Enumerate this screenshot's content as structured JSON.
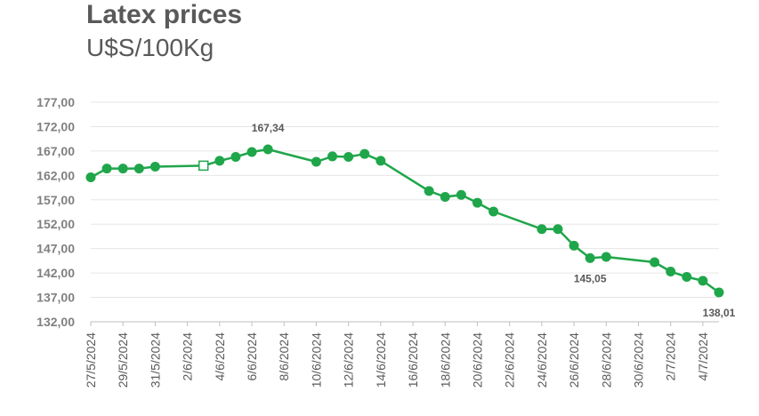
{
  "chart_data": {
    "type": "line",
    "title": "Latex prices",
    "subtitle": "U$S/100Kg",
    "xlabel": "",
    "ylabel": "",
    "ylim": [
      132,
      177
    ],
    "yticks": [
      "132,00",
      "137,00",
      "142,00",
      "147,00",
      "152,00",
      "157,00",
      "162,00",
      "167,00",
      "172,00",
      "177,00"
    ],
    "xlim": [
      "2024-05-27",
      "2024-07-05"
    ],
    "xticks": [
      "27/5/2024",
      "29/5/2024",
      "31/5/2024",
      "2/6/2024",
      "4/6/2024",
      "6/6/2024",
      "8/6/2024",
      "10/6/2024",
      "12/6/2024",
      "14/6/2024",
      "16/6/2024",
      "18/6/2024",
      "20/6/2024",
      "22/6/2024",
      "24/6/2024",
      "26/6/2024",
      "28/6/2024",
      "30/6/2024",
      "2/7/2024",
      "4/7/2024"
    ],
    "grid": true,
    "line_color": "#1fa64a",
    "series": [
      {
        "points": [
          {
            "x": "2024-05-27",
            "y": 161.6
          },
          {
            "x": "2024-05-28",
            "y": 163.4
          },
          {
            "x": "2024-05-29",
            "y": 163.4
          },
          {
            "x": "2024-05-30",
            "y": 163.4
          },
          {
            "x": "2024-05-31",
            "y": 163.8
          },
          {
            "x": "2024-06-03",
            "y": 164.0,
            "hollow": true
          },
          {
            "x": "2024-06-04",
            "y": 165.0
          },
          {
            "x": "2024-06-05",
            "y": 165.8
          },
          {
            "x": "2024-06-06",
            "y": 166.8
          },
          {
            "x": "2024-06-07",
            "y": 167.34,
            "label": "167,34"
          },
          {
            "x": "2024-06-10",
            "y": 164.8
          },
          {
            "x": "2024-06-11",
            "y": 165.9
          },
          {
            "x": "2024-06-12",
            "y": 165.8
          },
          {
            "x": "2024-06-13",
            "y": 166.4
          },
          {
            "x": "2024-06-14",
            "y": 165.0
          },
          {
            "x": "2024-06-17",
            "y": 158.8
          },
          {
            "x": "2024-06-18",
            "y": 157.6
          },
          {
            "x": "2024-06-19",
            "y": 158.0
          },
          {
            "x": "2024-06-20",
            "y": 156.4
          },
          {
            "x": "2024-06-21",
            "y": 154.6
          },
          {
            "x": "2024-06-24",
            "y": 151.0
          },
          {
            "x": "2024-06-25",
            "y": 151.0
          },
          {
            "x": "2024-06-26",
            "y": 147.6
          },
          {
            "x": "2024-06-27",
            "y": 145.05,
            "label": "145,05"
          },
          {
            "x": "2024-06-28",
            "y": 145.3
          },
          {
            "x": "2024-07-01",
            "y": 144.2
          },
          {
            "x": "2024-07-02",
            "y": 142.3
          },
          {
            "x": "2024-07-03",
            "y": 141.2
          },
          {
            "x": "2024-07-04",
            "y": 140.4
          },
          {
            "x": "2024-07-05",
            "y": 138.01,
            "label": "138,01"
          }
        ]
      }
    ]
  }
}
